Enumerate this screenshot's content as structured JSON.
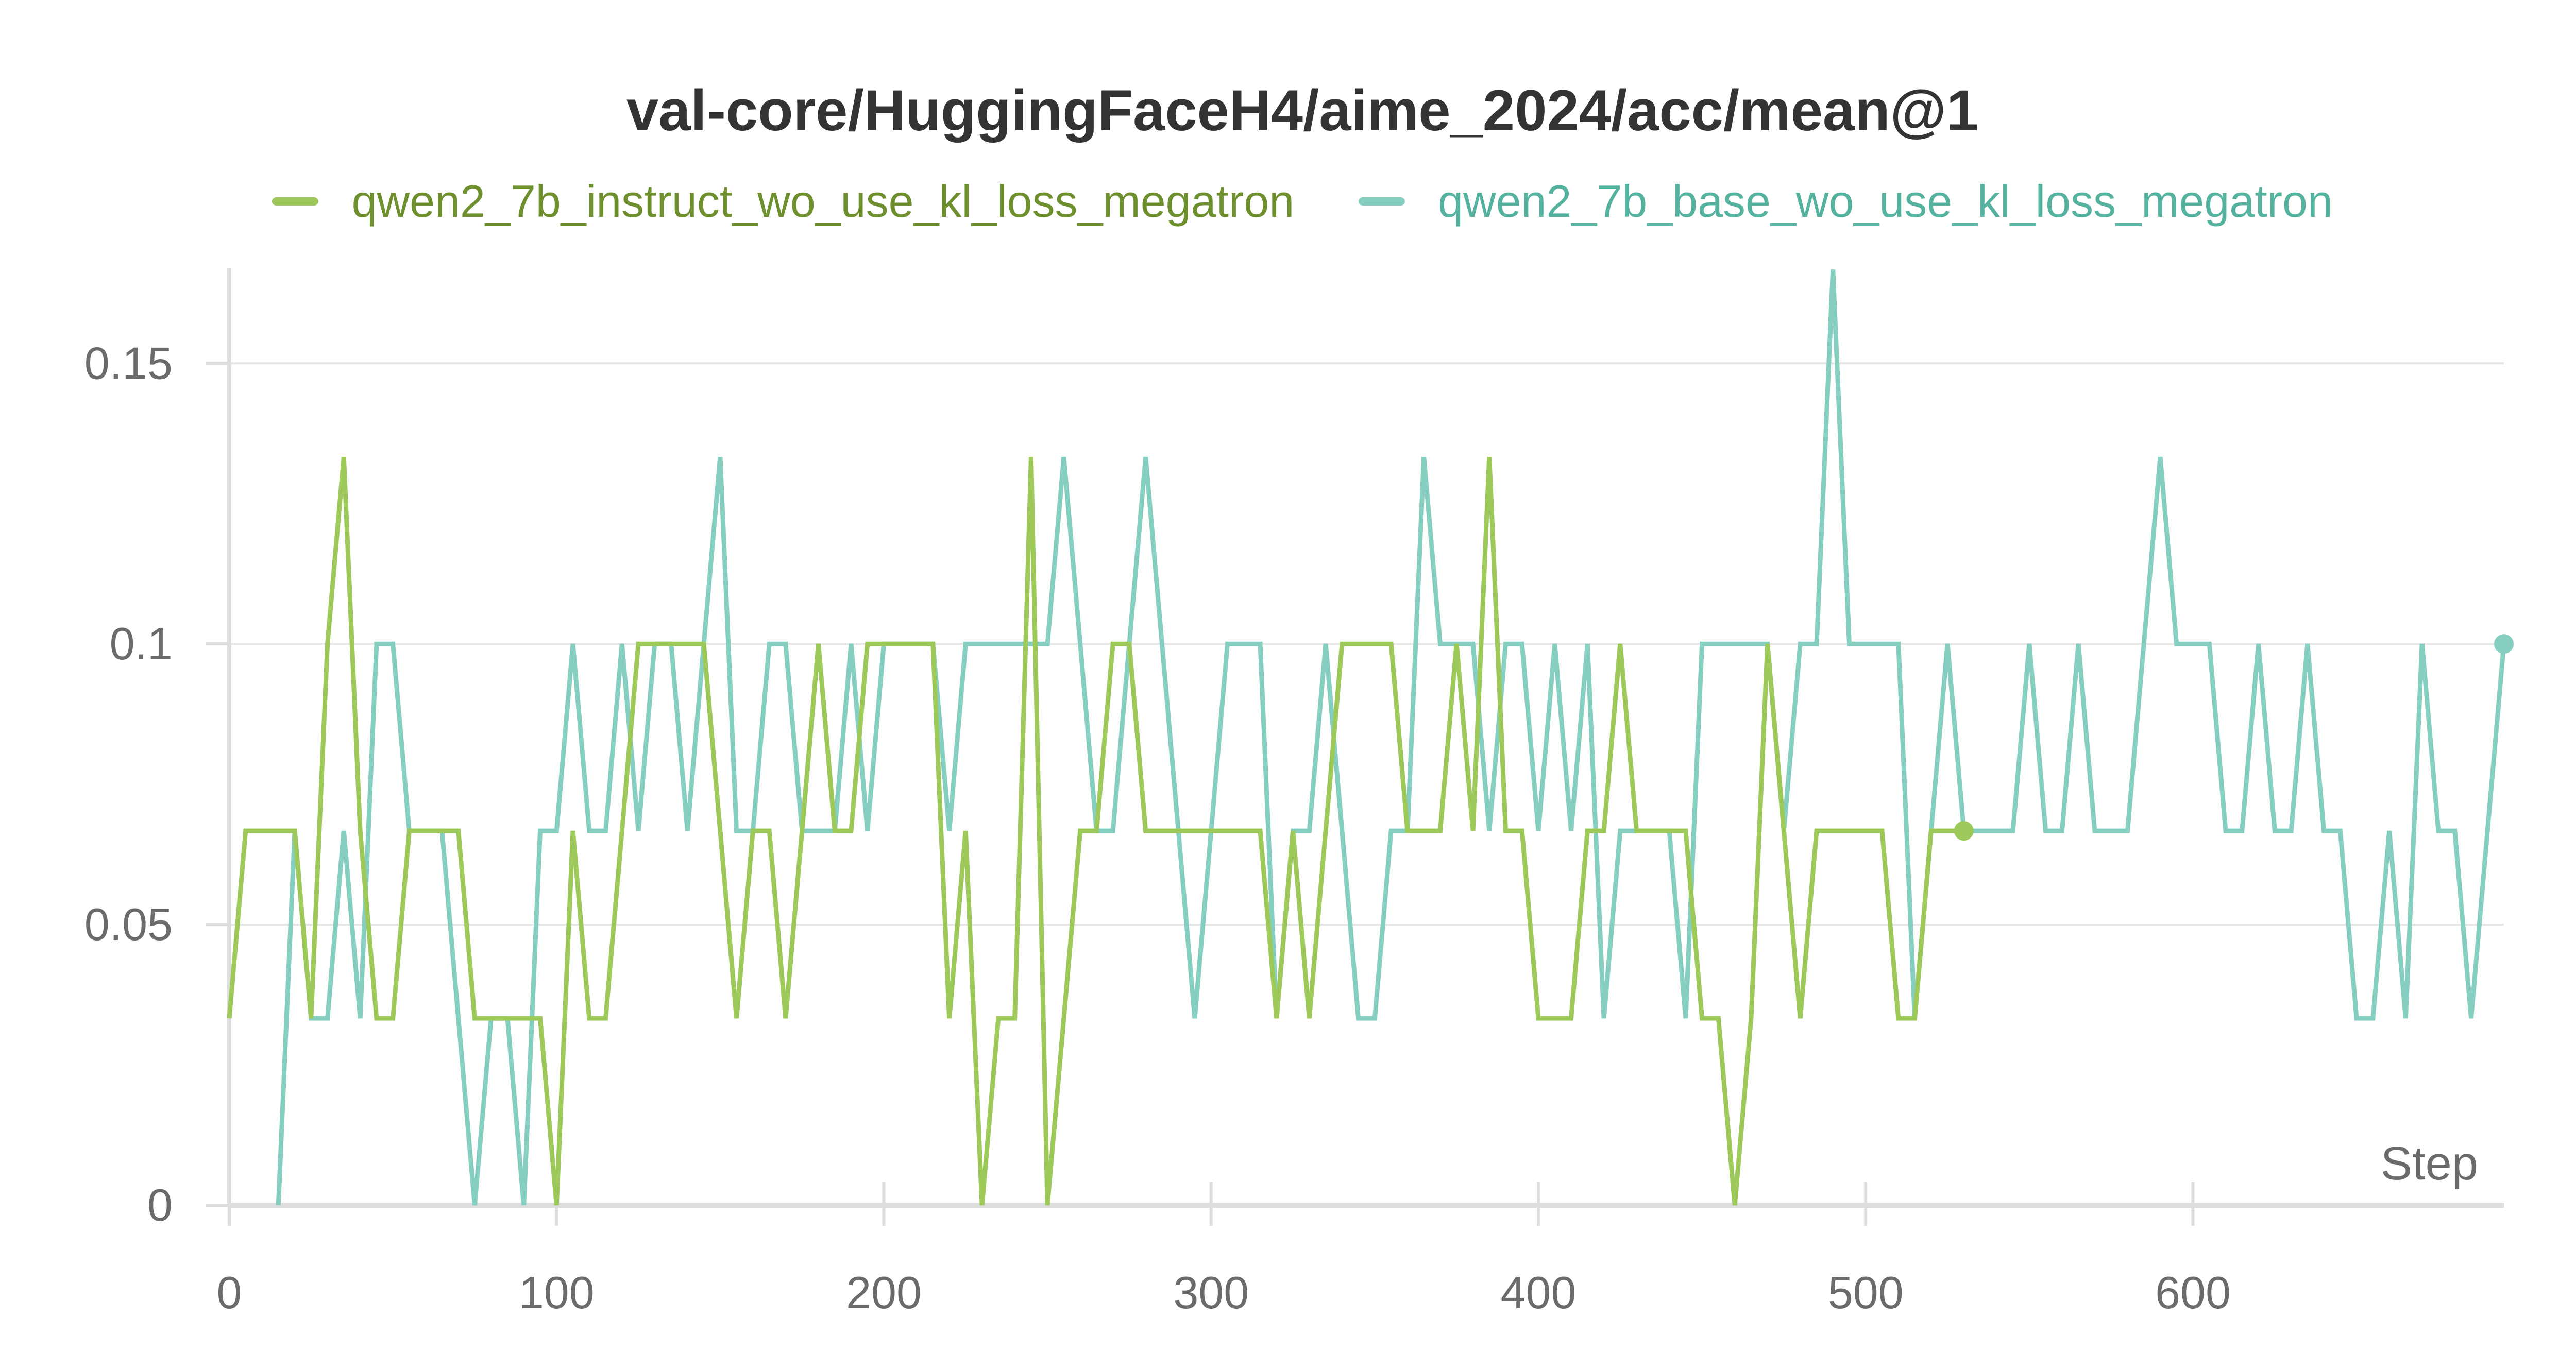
{
  "chart_data": {
    "type": "line",
    "title": "val-core/HuggingFaceH4/aime_2024/acc/mean@1",
    "xlabel": "Step",
    "ylabel": "",
    "xlim": [
      0,
      695
    ],
    "ylim": [
      0,
      0.167
    ],
    "xticks": [
      "0",
      "100",
      "200",
      "300",
      "400",
      "500",
      "600"
    ],
    "xtick_values": [
      0,
      100,
      200,
      300,
      400,
      500,
      600
    ],
    "yticks": [
      "0",
      "0.05",
      "0.1",
      "0.15"
    ],
    "ytick_values": [
      0,
      0.05,
      0.1,
      0.15
    ],
    "grid": true,
    "legend_position": "top",
    "series": [
      {
        "name": "qwen2_7b_instruct_wo_use_kl_loss_megatron",
        "color": "#9cc95a",
        "text_color": "#6e8f2e",
        "end_marker": true,
        "x": [
          0,
          5,
          10,
          15,
          20,
          25,
          30,
          35,
          40,
          45,
          50,
          55,
          60,
          65,
          70,
          75,
          80,
          85,
          90,
          95,
          100,
          105,
          110,
          115,
          120,
          125,
          130,
          135,
          140,
          145,
          150,
          155,
          160,
          165,
          170,
          175,
          180,
          185,
          190,
          195,
          200,
          205,
          210,
          215,
          220,
          225,
          230,
          235,
          240,
          245,
          250,
          255,
          260,
          265,
          270,
          275,
          280,
          285,
          290,
          295,
          300,
          305,
          310,
          315,
          320,
          325,
          330,
          335,
          340,
          345,
          350,
          355,
          360,
          365,
          370,
          375,
          380,
          385,
          390,
          395,
          400,
          405,
          410,
          415,
          420,
          425,
          430,
          435,
          440,
          445,
          450,
          455,
          460,
          465,
          470,
          475,
          480,
          485,
          490,
          495,
          500,
          505,
          510,
          515,
          520,
          525,
          530
        ],
        "values": [
          0.0333,
          0.0667,
          0.0667,
          0.0667,
          0.0667,
          0.0333,
          0.1,
          0.1333,
          0.0667,
          0.0333,
          0.0333,
          0.0667,
          0.0667,
          0.0667,
          0.0667,
          0.0333,
          0.0333,
          0.0333,
          0.0333,
          0.0333,
          0.0,
          0.0667,
          0.0333,
          0.0333,
          0.0667,
          0.1,
          0.1,
          0.1,
          0.1,
          0.1,
          0.0667,
          0.0333,
          0.0667,
          0.0667,
          0.0333,
          0.0667,
          0.1,
          0.0667,
          0.0667,
          0.1,
          0.1,
          0.1,
          0.1,
          0.1,
          0.0333,
          0.0667,
          0.0,
          0.0333,
          0.0333,
          0.1333,
          0.0,
          0.0333,
          0.0667,
          0.0667,
          0.1,
          0.1,
          0.0667,
          0.0667,
          0.0667,
          0.0667,
          0.0667,
          0.0667,
          0.0667,
          0.0667,
          0.0333,
          0.0667,
          0.0333,
          0.0667,
          0.1,
          0.1,
          0.1,
          0.1,
          0.0667,
          0.0667,
          0.0667,
          0.1,
          0.0667,
          0.1333,
          0.0667,
          0.0667,
          0.0333,
          0.0333,
          0.0333,
          0.0667,
          0.0667,
          0.1,
          0.0667,
          0.0667,
          0.0667,
          0.0667,
          0.0333,
          0.0333,
          0.0,
          0.0333,
          0.1,
          0.0667,
          0.0333,
          0.0667,
          0.0667,
          0.0667,
          0.0667,
          0.0667,
          0.0333,
          0.0333,
          0.0667,
          0.0667,
          0.0667
        ]
      },
      {
        "name": "qwen2_7b_base_wo_use_kl_loss_megatron",
        "color": "#86cfc0",
        "text_color": "#55b29f",
        "end_marker": true,
        "x": [
          15,
          20,
          25,
          30,
          35,
          40,
          45,
          50,
          55,
          60,
          65,
          70,
          75,
          80,
          85,
          90,
          95,
          100,
          105,
          110,
          115,
          120,
          125,
          130,
          135,
          140,
          145,
          150,
          155,
          160,
          165,
          170,
          175,
          180,
          185,
          190,
          195,
          200,
          205,
          210,
          215,
          220,
          225,
          230,
          235,
          240,
          245,
          250,
          255,
          260,
          265,
          270,
          275,
          280,
          285,
          290,
          295,
          300,
          305,
          310,
          315,
          320,
          325,
          330,
          335,
          340,
          345,
          350,
          355,
          360,
          365,
          370,
          375,
          380,
          385,
          390,
          395,
          400,
          405,
          410,
          415,
          420,
          425,
          430,
          435,
          440,
          445,
          450,
          455,
          460,
          465,
          470,
          475,
          480,
          485,
          490,
          495,
          500,
          505,
          510,
          515,
          520,
          525,
          530,
          535,
          540,
          545,
          550,
          555,
          560,
          565,
          570,
          575,
          580,
          585,
          590,
          595,
          600,
          605,
          610,
          615,
          620,
          625,
          630,
          635,
          640,
          645,
          650,
          655,
          660,
          665,
          670,
          675,
          680,
          685,
          690,
          695
        ],
        "values": [
          0.0,
          0.0667,
          0.0333,
          0.0333,
          0.0667,
          0.0333,
          0.1,
          0.1,
          0.0667,
          0.0667,
          0.0667,
          0.0333,
          0.0,
          0.0333,
          0.0333,
          0.0,
          0.0667,
          0.0667,
          0.1,
          0.0667,
          0.0667,
          0.1,
          0.0667,
          0.1,
          0.1,
          0.0667,
          0.1,
          0.1333,
          0.0667,
          0.0667,
          0.1,
          0.1,
          0.0667,
          0.0667,
          0.0667,
          0.1,
          0.0667,
          0.1,
          0.1,
          0.1,
          0.1,
          0.0667,
          0.1,
          0.1,
          0.1,
          0.1,
          0.1,
          0.1,
          0.1333,
          0.1,
          0.0667,
          0.0667,
          0.1,
          0.1333,
          0.1,
          0.0667,
          0.0333,
          0.0667,
          0.1,
          0.1,
          0.1,
          0.0333,
          0.0667,
          0.0667,
          0.1,
          0.0667,
          0.0333,
          0.0333,
          0.0667,
          0.0667,
          0.1333,
          0.1,
          0.1,
          0.1,
          0.0667,
          0.1,
          0.1,
          0.0667,
          0.1,
          0.0667,
          0.1,
          0.0333,
          0.0667,
          0.0667,
          0.0667,
          0.0667,
          0.0333,
          0.1,
          0.1,
          0.1,
          0.1,
          0.1,
          0.0667,
          0.1,
          0.1,
          0.1667,
          0.1,
          0.1,
          0.1,
          0.1,
          0.0333,
          0.0667,
          0.1,
          0.0667,
          0.0667,
          0.0667,
          0.0667,
          0.1,
          0.0667,
          0.0667,
          0.1,
          0.0667,
          0.0667,
          0.0667,
          0.1,
          0.1333,
          0.1,
          0.1,
          0.1,
          0.0667,
          0.0667,
          0.1,
          0.0667,
          0.0667,
          0.1,
          0.0667,
          0.0667,
          0.0333,
          0.0333,
          0.0667,
          0.0333,
          0.1,
          0.0667,
          0.0667,
          0.0333,
          0.0667,
          0.1
        ]
      }
    ]
  }
}
